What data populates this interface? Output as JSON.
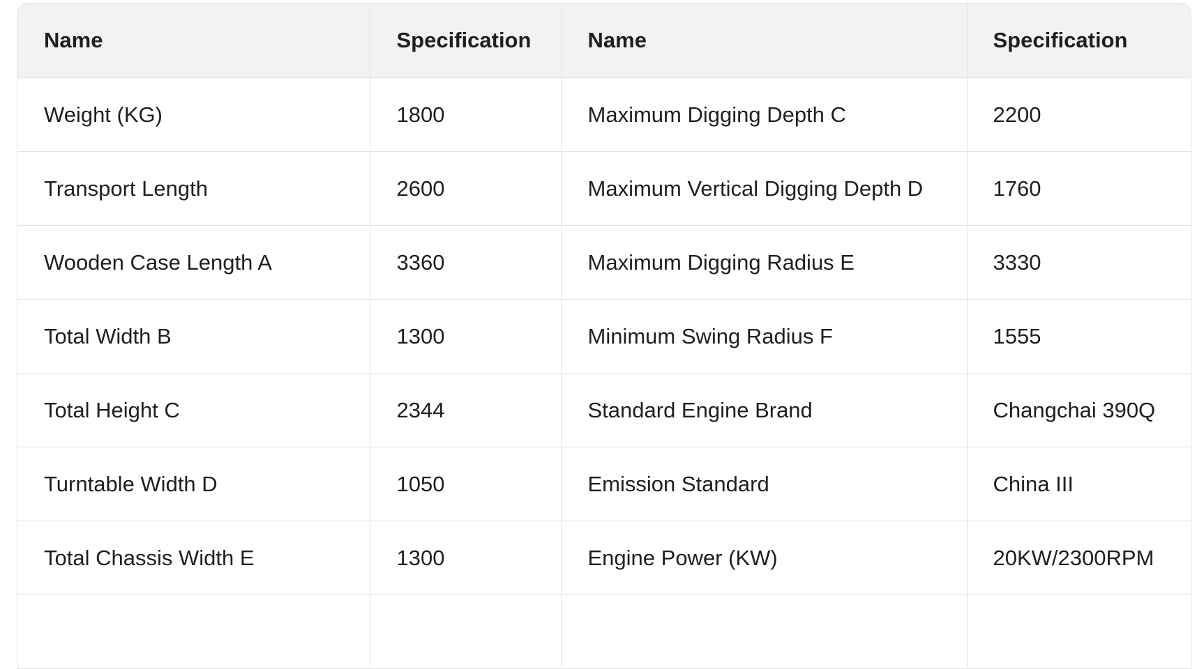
{
  "table": {
    "header": [
      "Name",
      "Specification",
      "Name",
      "Specification"
    ],
    "rows": [
      [
        "Weight (KG)",
        "1800",
        "Maximum Digging Depth C",
        "2200"
      ],
      [
        "Transport Length",
        "2600",
        "Maximum Vertical Digging Depth D",
        "1760"
      ],
      [
        "Wooden Case Length A",
        "3360",
        "Maximum Digging Radius E",
        "3330"
      ],
      [
        "Total Width B",
        "1300",
        "Minimum Swing Radius F",
        "1555"
      ],
      [
        "Total Height C",
        "2344",
        "Standard Engine Brand",
        "Changchai 390Q"
      ],
      [
        "Turntable Width D",
        "1050",
        "Emission Standard",
        "China III"
      ],
      [
        "Total Chassis Width E",
        "1300",
        "Engine Power (KW)",
        "20KW/2300RPM"
      ]
    ]
  }
}
